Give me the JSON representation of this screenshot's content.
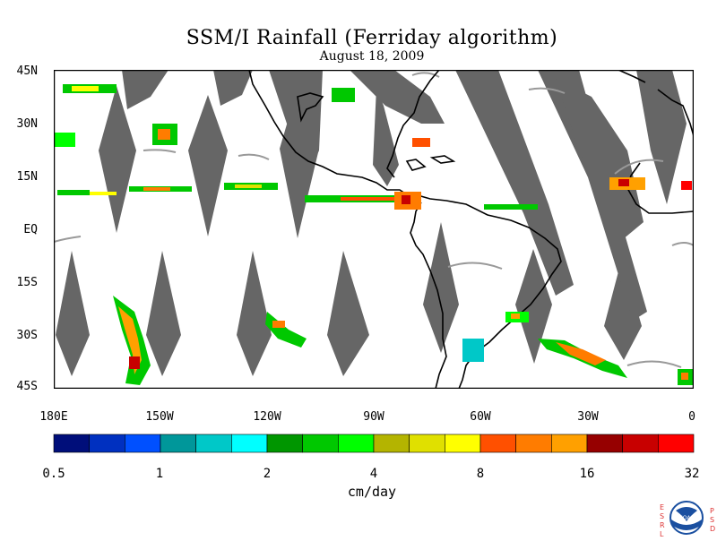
{
  "title": "SSM/I Rainfall (Ferriday algorithm)",
  "subtitle": "August 18, 2009",
  "latitude_labels": [
    "45N",
    "30N",
    "15N",
    "EQ",
    "15S",
    "30S",
    "45S"
  ],
  "longitude_labels": [
    "180E",
    "150W",
    "120W",
    "90W",
    "60W",
    "30W",
    "0"
  ],
  "colorbar": {
    "units": "cm/day",
    "tick_labels": [
      "0.5",
      "1",
      "2",
      "4",
      "8",
      "16",
      "32"
    ],
    "colors": [
      "#000e7a",
      "#0030c0",
      "#0050ff",
      "#00979a",
      "#00c8c8",
      "#00ffff",
      "#009600",
      "#00c800",
      "#00ff00",
      "#b4b400",
      "#e0e000",
      "#ffff00",
      "#ff5000",
      "#ff7c00",
      "#ffa000",
      "#960000",
      "#c80000",
      "#ff0000"
    ]
  },
  "map": {
    "projection": "equirectangular",
    "lon_range": [
      -180,
      0
    ],
    "lat_range": [
      -45,
      45
    ],
    "missing_data_color": "#666666",
    "coastline_color": "#000000"
  },
  "logo": {
    "left_letters": "ESRL",
    "right_letters": "PSD",
    "name": "NOAA"
  }
}
